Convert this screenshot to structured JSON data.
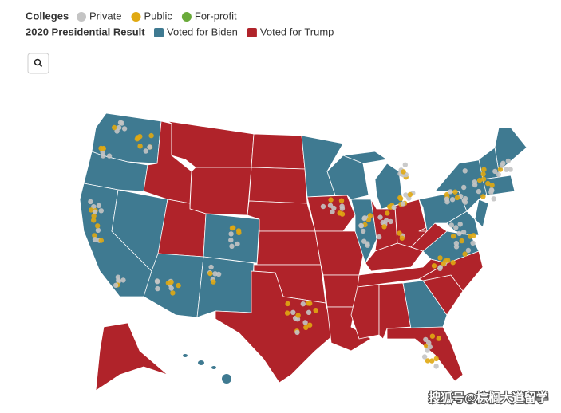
{
  "legend": {
    "colleges_title": "Colleges",
    "colleges": [
      {
        "label": "Private",
        "color": "#c4c4c4"
      },
      {
        "label": "Public",
        "color": "#e0a912"
      },
      {
        "label": "For-profit",
        "color": "#6aaa3a"
      }
    ],
    "result_title": "2020 Presidential Result",
    "results": [
      {
        "label": "Voted for Biden",
        "color": "#3f7a91"
      },
      {
        "label": "Voted for Trump",
        "color": "#b0232a"
      }
    ]
  },
  "watermark": "搜狐号@棕榈大道留学"
}
